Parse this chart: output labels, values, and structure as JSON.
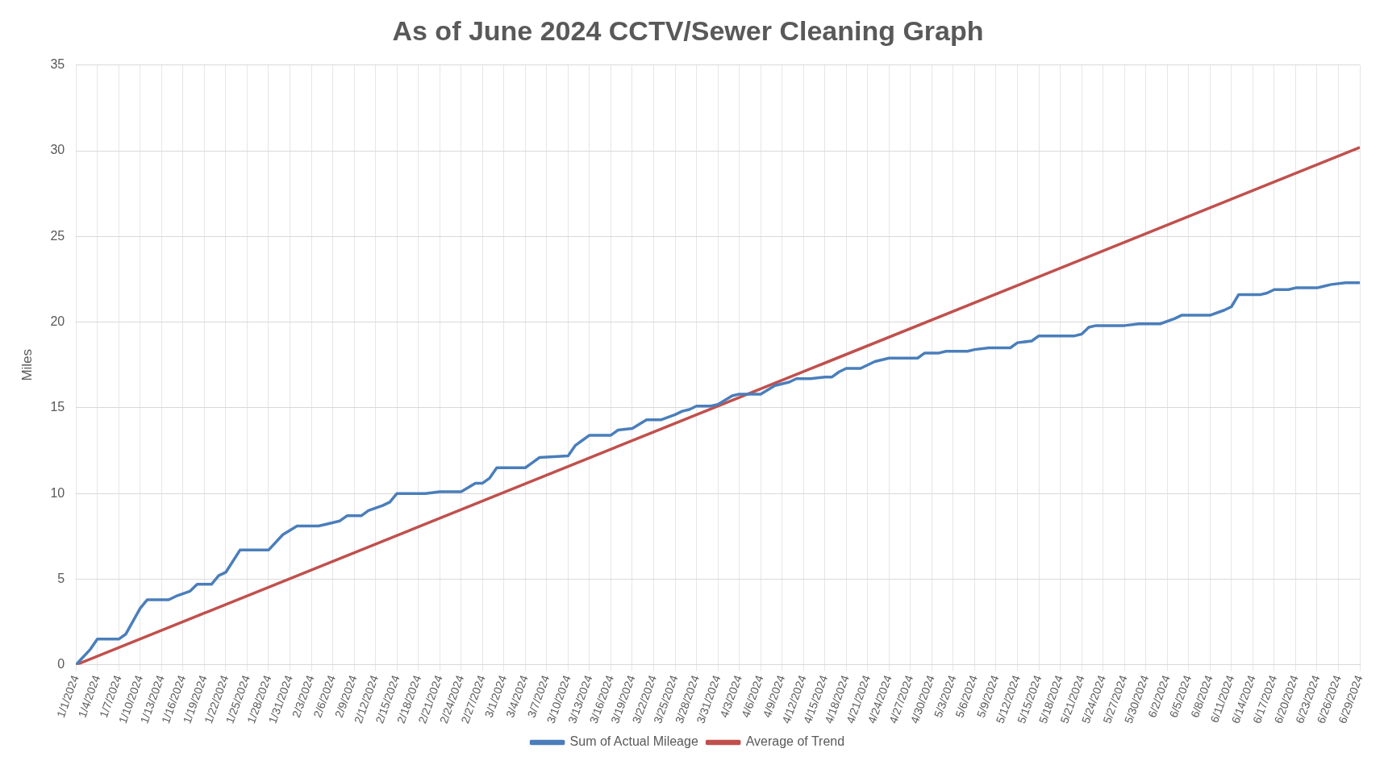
{
  "chart_data": {
    "type": "line",
    "title": "As of June 2024 CCTV/Sewer Cleaning Graph",
    "ylabel": "Miles",
    "ylim": [
      0,
      35
    ],
    "yticks": [
      0,
      5,
      10,
      15,
      20,
      25,
      30,
      35
    ],
    "xlim": [
      "2024-01-01",
      "2024-06-29"
    ],
    "xticks": [
      {
        "value": "2024-01-01",
        "label": "1/1/2024"
      },
      {
        "value": "2024-01-04",
        "label": "1/4/2024"
      },
      {
        "value": "2024-01-07",
        "label": "1/7/2024"
      },
      {
        "value": "2024-01-10",
        "label": "1/10/2024"
      },
      {
        "value": "2024-01-13",
        "label": "1/13/2024"
      },
      {
        "value": "2024-01-16",
        "label": "1/16/2024"
      },
      {
        "value": "2024-01-19",
        "label": "1/19/2024"
      },
      {
        "value": "2024-01-22",
        "label": "1/22/2024"
      },
      {
        "value": "2024-01-25",
        "label": "1/25/2024"
      },
      {
        "value": "2024-01-28",
        "label": "1/28/2024"
      },
      {
        "value": "2024-01-31",
        "label": "1/31/2024"
      },
      {
        "value": "2024-02-03",
        "label": "2/3/2024"
      },
      {
        "value": "2024-02-06",
        "label": "2/6/2024"
      },
      {
        "value": "2024-02-09",
        "label": "2/9/2024"
      },
      {
        "value": "2024-02-12",
        "label": "2/12/2024"
      },
      {
        "value": "2024-02-15",
        "label": "2/15/2024"
      },
      {
        "value": "2024-02-18",
        "label": "2/18/2024"
      },
      {
        "value": "2024-02-21",
        "label": "2/21/2024"
      },
      {
        "value": "2024-02-24",
        "label": "2/24/2024"
      },
      {
        "value": "2024-02-27",
        "label": "2/27/2024"
      },
      {
        "value": "2024-03-01",
        "label": "3/1/2024"
      },
      {
        "value": "2024-03-04",
        "label": "3/4/2024"
      },
      {
        "value": "2024-03-07",
        "label": "3/7/2024"
      },
      {
        "value": "2024-03-10",
        "label": "3/10/2024"
      },
      {
        "value": "2024-03-13",
        "label": "3/13/2024"
      },
      {
        "value": "2024-03-16",
        "label": "3/16/2024"
      },
      {
        "value": "2024-03-19",
        "label": "3/19/2024"
      },
      {
        "value": "2024-03-22",
        "label": "3/22/2024"
      },
      {
        "value": "2024-03-25",
        "label": "3/25/2024"
      },
      {
        "value": "2024-03-28",
        "label": "3/28/2024"
      },
      {
        "value": "2024-03-31",
        "label": "3/31/2024"
      },
      {
        "value": "2024-04-03",
        "label": "4/3/2024"
      },
      {
        "value": "2024-04-06",
        "label": "4/6/2024"
      },
      {
        "value": "2024-04-09",
        "label": "4/9/2024"
      },
      {
        "value": "2024-04-12",
        "label": "4/12/2024"
      },
      {
        "value": "2024-04-15",
        "label": "4/15/2024"
      },
      {
        "value": "2024-04-18",
        "label": "4/18/2024"
      },
      {
        "value": "2024-04-21",
        "label": "4/21/2024"
      },
      {
        "value": "2024-04-24",
        "label": "4/24/2024"
      },
      {
        "value": "2024-04-27",
        "label": "4/27/2024"
      },
      {
        "value": "2024-04-30",
        "label": "4/30/2024"
      },
      {
        "value": "2024-05-03",
        "label": "5/3/2024"
      },
      {
        "value": "2024-05-06",
        "label": "5/6/2024"
      },
      {
        "value": "2024-05-09",
        "label": "5/9/2024"
      },
      {
        "value": "2024-05-12",
        "label": "5/12/2024"
      },
      {
        "value": "2024-05-15",
        "label": "5/15/2024"
      },
      {
        "value": "2024-05-18",
        "label": "5/18/2024"
      },
      {
        "value": "2024-05-21",
        "label": "5/21/2024"
      },
      {
        "value": "2024-05-24",
        "label": "5/24/2024"
      },
      {
        "value": "2024-05-27",
        "label": "5/27/2024"
      },
      {
        "value": "2024-05-30",
        "label": "5/30/2024"
      },
      {
        "value": "2024-06-02",
        "label": "6/2/2024"
      },
      {
        "value": "2024-06-05",
        "label": "6/5/2024"
      },
      {
        "value": "2024-06-08",
        "label": "6/8/2024"
      },
      {
        "value": "2024-06-11",
        "label": "6/11/2024"
      },
      {
        "value": "2024-06-14",
        "label": "6/14/2024"
      },
      {
        "value": "2024-06-17",
        "label": "6/17/2024"
      },
      {
        "value": "2024-06-20",
        "label": "6/20/2024"
      },
      {
        "value": "2024-06-23",
        "label": "6/23/2024"
      },
      {
        "value": "2024-06-26",
        "label": "6/26/2024"
      },
      {
        "value": "2024-06-29",
        "label": "6/29/2024"
      }
    ],
    "grid": true,
    "legend": "bottom",
    "marker": "none",
    "line_style": "solid",
    "series": [
      {
        "name": "Sum of Actual Mileage",
        "color": "#4a7ebb",
        "x": [
          "2024-01-01",
          "2024-01-03",
          "2024-01-04",
          "2024-01-07",
          "2024-01-08",
          "2024-01-10",
          "2024-01-11",
          "2024-01-14",
          "2024-01-15",
          "2024-01-17",
          "2024-01-18",
          "2024-01-20",
          "2024-01-21",
          "2024-01-22",
          "2024-01-24",
          "2024-01-28",
          "2024-01-30",
          "2024-02-01",
          "2024-02-04",
          "2024-02-05",
          "2024-02-07",
          "2024-02-08",
          "2024-02-10",
          "2024-02-11",
          "2024-02-13",
          "2024-02-14",
          "2024-02-15",
          "2024-02-19",
          "2024-02-21",
          "2024-02-24",
          "2024-02-26",
          "2024-02-27",
          "2024-02-28",
          "2024-02-29",
          "2024-03-04",
          "2024-03-05",
          "2024-03-06",
          "2024-03-10",
          "2024-03-11",
          "2024-03-12",
          "2024-03-13",
          "2024-03-16",
          "2024-03-17",
          "2024-03-19",
          "2024-03-21",
          "2024-03-23",
          "2024-03-25",
          "2024-03-26",
          "2024-03-27",
          "2024-03-28",
          "2024-03-30",
          "2024-03-31",
          "2024-04-02",
          "2024-04-03",
          "2024-04-06",
          "2024-04-08",
          "2024-04-10",
          "2024-04-11",
          "2024-04-13",
          "2024-04-15",
          "2024-04-16",
          "2024-04-17",
          "2024-04-18",
          "2024-04-20",
          "2024-04-22",
          "2024-04-24",
          "2024-04-28",
          "2024-04-29",
          "2024-05-01",
          "2024-05-02",
          "2024-05-05",
          "2024-05-06",
          "2024-05-08",
          "2024-05-11",
          "2024-05-12",
          "2024-05-14",
          "2024-05-15",
          "2024-05-20",
          "2024-05-21",
          "2024-05-22",
          "2024-05-23",
          "2024-05-27",
          "2024-05-29",
          "2024-06-01",
          "2024-06-03",
          "2024-06-04",
          "2024-06-08",
          "2024-06-10",
          "2024-06-11",
          "2024-06-12",
          "2024-06-15",
          "2024-06-16",
          "2024-06-17",
          "2024-06-19",
          "2024-06-20",
          "2024-06-23",
          "2024-06-24",
          "2024-06-25",
          "2024-06-27",
          "2024-06-29"
        ],
        "values": [
          0,
          0.9,
          1.5,
          1.5,
          1.8,
          3.3,
          3.8,
          3.8,
          4.0,
          4.3,
          4.7,
          4.7,
          5.2,
          5.4,
          6.7,
          6.7,
          7.6,
          8.1,
          8.1,
          8.2,
          8.4,
          8.7,
          8.7,
          9.0,
          9.3,
          9.5,
          10.0,
          10.0,
          10.1,
          10.1,
          10.6,
          10.6,
          10.9,
          11.5,
          11.5,
          11.8,
          12.1,
          12.2,
          12.8,
          13.1,
          13.4,
          13.4,
          13.7,
          13.8,
          14.3,
          14.3,
          14.6,
          14.8,
          14.9,
          15.1,
          15.1,
          15.2,
          15.7,
          15.8,
          15.8,
          16.3,
          16.5,
          16.7,
          16.7,
          16.8,
          16.8,
          17.1,
          17.3,
          17.3,
          17.7,
          17.9,
          17.9,
          18.2,
          18.2,
          18.3,
          18.3,
          18.4,
          18.5,
          18.5,
          18.8,
          18.9,
          19.2,
          19.2,
          19.3,
          19.7,
          19.8,
          19.8,
          19.9,
          19.9,
          20.2,
          20.4,
          20.4,
          20.7,
          20.9,
          21.6,
          21.6,
          21.7,
          21.9,
          21.9,
          22.0,
          22.0,
          22.1,
          22.2,
          22.3,
          22.3
        ]
      },
      {
        "name": "Average of Trend",
        "color": "#c0504d",
        "x": [
          "2024-01-01",
          "2024-06-29"
        ],
        "values": [
          0,
          30.2
        ]
      }
    ]
  }
}
